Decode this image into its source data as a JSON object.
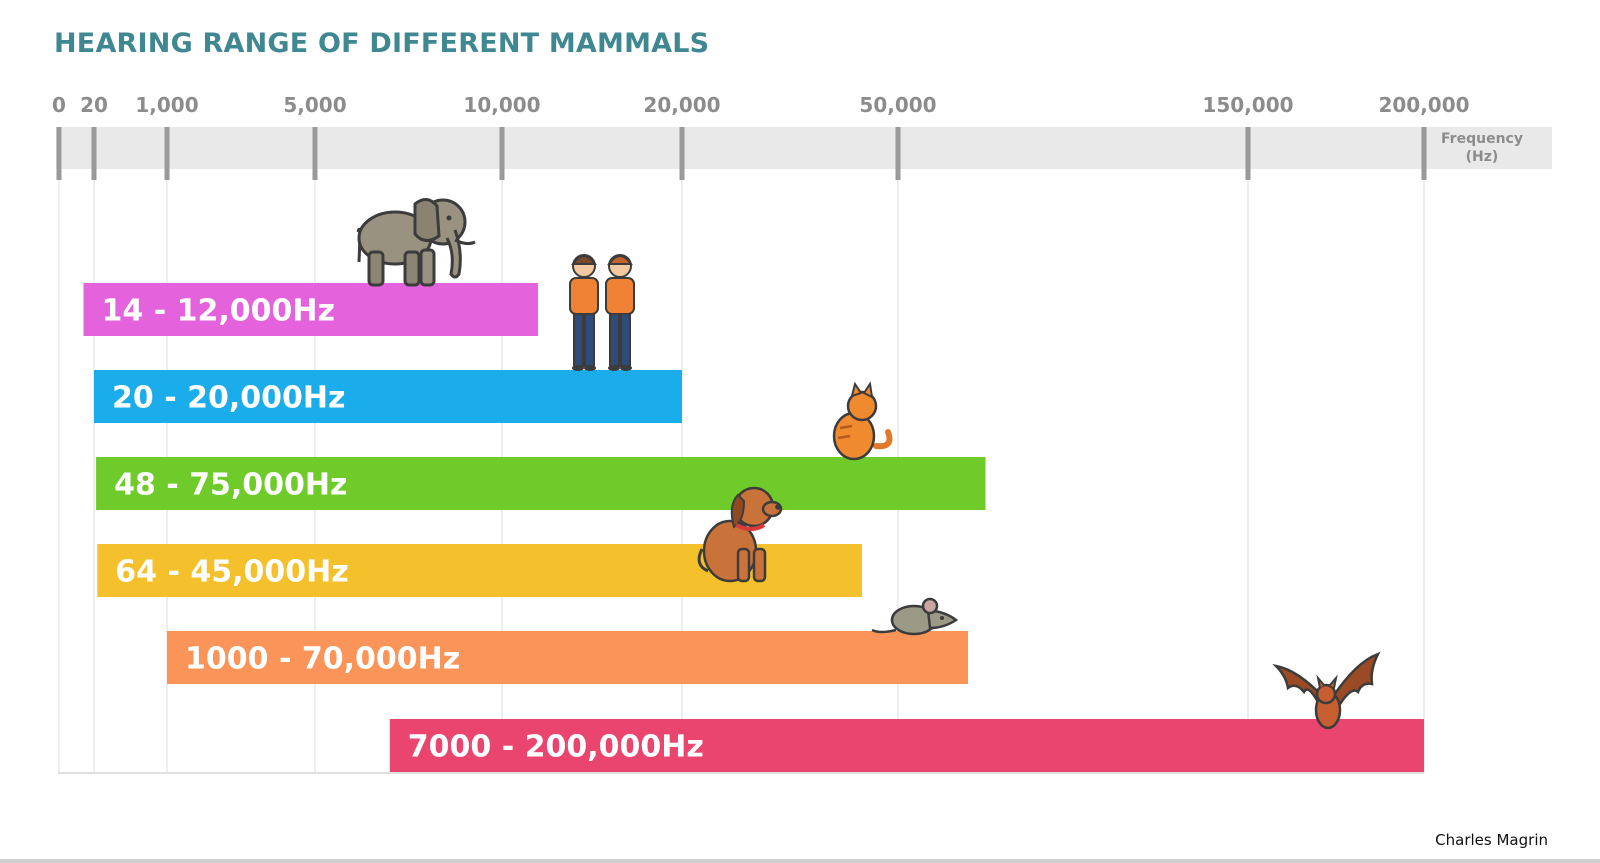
{
  "chart_data": {
    "type": "bar",
    "orientation": "horizontal",
    "title": "HEARING RANGE OF DIFFERENT MAMMALS",
    "xlabel": "Frequency (Hz)",
    "x_ticks": [
      {
        "value": 0,
        "label": "0"
      },
      {
        "value": 20,
        "label": "20"
      },
      {
        "value": 1000,
        "label": "1,000"
      },
      {
        "value": 5000,
        "label": "5,000"
      },
      {
        "value": 10000,
        "label": "10,000"
      },
      {
        "value": 20000,
        "label": "20,000"
      },
      {
        "value": 50000,
        "label": "50,000"
      },
      {
        "value": 150000,
        "label": "150,000"
      },
      {
        "value": 200000,
        "label": "200,000"
      }
    ],
    "xlim": [
      0,
      200000
    ],
    "grid": true,
    "bars": [
      {
        "icon": "elephant",
        "low": 14,
        "high": 12000,
        "label": "14 - 12,000Hz",
        "color": "#e463dc"
      },
      {
        "icon": "humans",
        "low": 20,
        "high": 20000,
        "label": "20 - 20,000Hz",
        "color": "#1badeb"
      },
      {
        "icon": "cat",
        "low": 48,
        "high": 75000,
        "label": "48 - 75,000Hz",
        "color": "#6fcb2a"
      },
      {
        "icon": "dog",
        "low": 64,
        "high": 45000,
        "label": "64 - 45,000Hz",
        "color": "#f4c12c"
      },
      {
        "icon": "mouse",
        "low": 1000,
        "high": 70000,
        "label": "1000 - 70,000Hz",
        "color": "#fb9459"
      },
      {
        "icon": "bat",
        "low": 7000,
        "high": 200000,
        "label": "7000 - 200,000Hz",
        "color": "#e9456e"
      }
    ]
  },
  "axis_label_lines": [
    "Frequency",
    "(Hz)"
  ],
  "credit": "Charles Magrin",
  "colors": {
    "title": "#3f8791",
    "tick": "#8c8c8c",
    "axis_band": "#e9e9e9",
    "grid": "#e3e3e3"
  }
}
